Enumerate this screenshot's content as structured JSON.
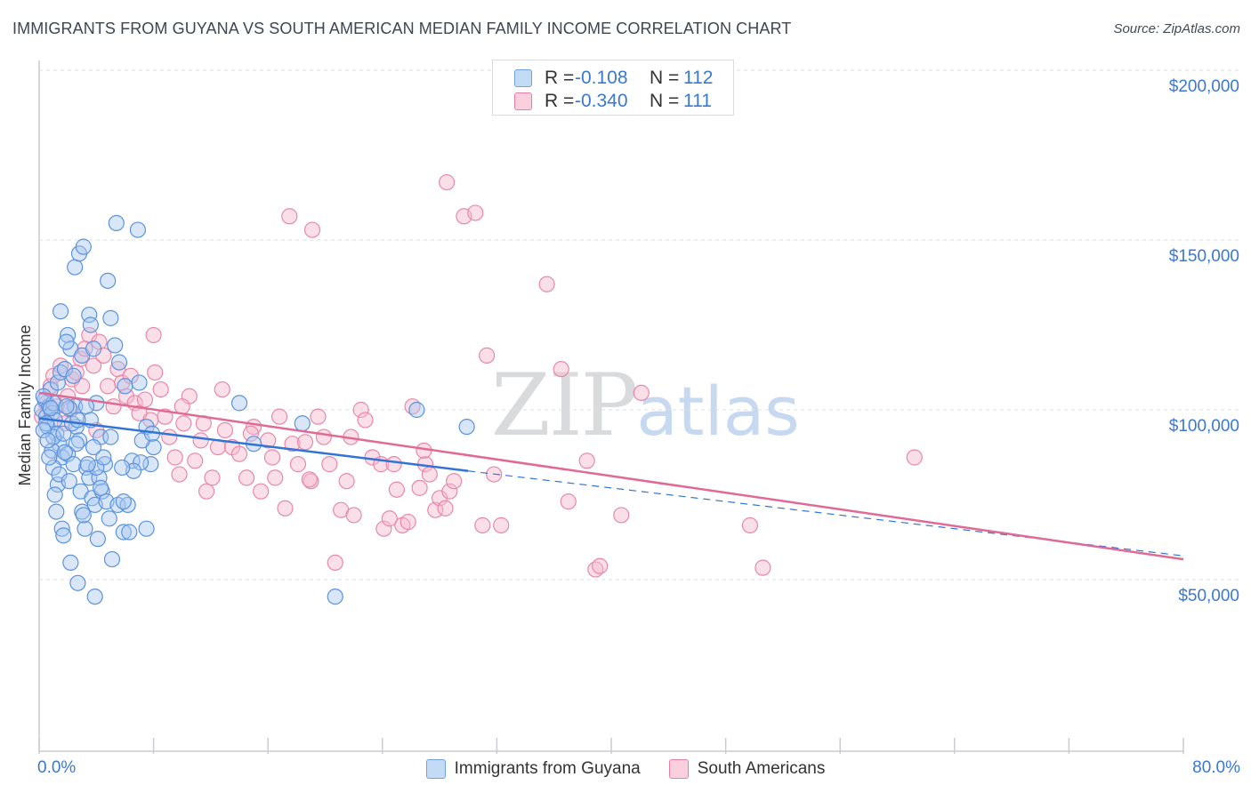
{
  "header": {
    "title": "IMMIGRANTS FROM GUYANA VS SOUTH AMERICAN MEDIAN FAMILY INCOME CORRELATION CHART",
    "source": "Source: ZipAtlas.com"
  },
  "watermark": {
    "zip": "ZIP",
    "atlas": "atlas"
  },
  "legend": {
    "rows": [
      {
        "r_label": "R =",
        "r_value": "-0.108",
        "n_label": "N =",
        "n_value": "112",
        "color": "#a9c8f0",
        "border": "#6fa0e0"
      },
      {
        "r_label": "R =",
        "r_value": "-0.340",
        "n_label": "N =",
        "n_value": "111",
        "color": "#f7b8cd",
        "border": "#e87fa3"
      }
    ]
  },
  "bottom_legend": {
    "series_a": "Immigrants from Guyana",
    "series_b": "South Americans"
  },
  "colors": {
    "blue_fill": "#a9c8f0",
    "blue_stroke": "#5b93dc",
    "blue_line": "#3273d6",
    "pink_fill": "#f7b8cd",
    "pink_stroke": "#e888a8",
    "pink_line": "#e06a95",
    "grid": "#dcdfe3",
    "axis_text": "#3b78d0"
  },
  "chart_data": {
    "type": "scatter",
    "title": "IMMIGRANTS FROM GUYANA VS SOUTH AMERICAN MEDIAN FAMILY INCOME CORRELATION CHART",
    "xlabel": "",
    "ylabel": "Median Family Income",
    "xlim": [
      0,
      80
    ],
    "ylim": [
      0,
      210000
    ],
    "x_tick_labels": [
      "0.0%",
      "80.0%"
    ],
    "y_ticks": [
      {
        "value": 50000,
        "label": "$50,000"
      },
      {
        "value": 100000,
        "label": "$100,000"
      },
      {
        "value": 150000,
        "label": "$150,000"
      },
      {
        "value": 200000,
        "label": "$200,000"
      }
    ],
    "series": [
      {
        "name": "Immigrants from Guyana",
        "R": -0.108,
        "N": 112,
        "trend": {
          "x0": 0,
          "y0": 97500,
          "x1": 30,
          "y1": 82000,
          "x_dash_end": 80,
          "y_dash_end": 57000
        },
        "points": [
          [
            0.2,
            100000
          ],
          [
            0.4,
            103000
          ],
          [
            0.5,
            98000
          ],
          [
            0.6,
            95000
          ],
          [
            0.7,
            101000
          ],
          [
            0.8,
            106000
          ],
          [
            0.9,
            99000
          ],
          [
            1.0,
            102000
          ],
          [
            1.1,
            97000
          ],
          [
            1.2,
            93000
          ],
          [
            0.3,
            104000
          ],
          [
            0.5,
            96000
          ],
          [
            0.8,
            100500
          ],
          [
            1.3,
            108000
          ],
          [
            1.5,
            111000
          ],
          [
            1.4,
            90000
          ],
          [
            1.6,
            86000
          ],
          [
            1.8,
            112000
          ],
          [
            2.0,
            122000
          ],
          [
            2.2,
            118000
          ],
          [
            1.5,
            129000
          ],
          [
            1.9,
            120000
          ],
          [
            2.4,
            110000
          ],
          [
            2.5,
            101000
          ],
          [
            2.6,
            95000
          ],
          [
            2.8,
            91000
          ],
          [
            3.0,
            116000
          ],
          [
            2.5,
            142000
          ],
          [
            2.8,
            146000
          ],
          [
            3.1,
            148000
          ],
          [
            3.5,
            128000
          ],
          [
            3.6,
            125000
          ],
          [
            3.8,
            118000
          ],
          [
            4.0,
            102000
          ],
          [
            4.3,
            92000
          ],
          [
            4.6,
            84000
          ],
          [
            4.8,
            138000
          ],
          [
            5.0,
            127000
          ],
          [
            5.3,
            119000
          ],
          [
            5.6,
            114000
          ],
          [
            5.4,
            155000
          ],
          [
            6.9,
            153000
          ],
          [
            6.0,
            107000
          ],
          [
            7.0,
            108000
          ],
          [
            7.5,
            95000
          ],
          [
            8.0,
            89000
          ],
          [
            7.8,
            84000
          ],
          [
            1.0,
            83000
          ],
          [
            1.3,
            78000
          ],
          [
            1.1,
            75000
          ],
          [
            1.2,
            70000
          ],
          [
            1.6,
            65000
          ],
          [
            1.7,
            63000
          ],
          [
            2.2,
            55000
          ],
          [
            2.7,
            49000
          ],
          [
            3.2,
            65000
          ],
          [
            2.9,
            76000
          ],
          [
            3.3,
            83000
          ],
          [
            3.5,
            80000
          ],
          [
            3.7,
            74000
          ],
          [
            3.9,
            72000
          ],
          [
            4.1,
            62000
          ],
          [
            4.2,
            80000
          ],
          [
            4.4,
            76000
          ],
          [
            4.7,
            73000
          ],
          [
            4.9,
            68000
          ],
          [
            5.1,
            56000
          ],
          [
            3.9,
            45000
          ],
          [
            5.5,
            72000
          ],
          [
            5.9,
            64000
          ],
          [
            6.2,
            72000
          ],
          [
            6.5,
            85000
          ],
          [
            7.1,
            84500
          ],
          [
            7.5,
            65000
          ],
          [
            5.9,
            73000
          ],
          [
            6.3,
            64000
          ],
          [
            6.6,
            82000
          ],
          [
            2.0,
            87000
          ],
          [
            2.4,
            84000
          ],
          [
            2.6,
            90000
          ],
          [
            0.9,
            88000
          ],
          [
            1.0,
            92000
          ],
          [
            1.7,
            93000
          ],
          [
            2.1,
            100500
          ],
          [
            2.3,
            96000
          ],
          [
            3.0,
            70000
          ],
          [
            3.3,
            101000
          ],
          [
            3.6,
            97000
          ],
          [
            4.0,
            83000
          ],
          [
            4.5,
            86000
          ],
          [
            5.0,
            92000
          ],
          [
            5.8,
            83000
          ],
          [
            7.2,
            91000
          ],
          [
            7.9,
            93000
          ],
          [
            14.0,
            102000
          ],
          [
            15.0,
            90000
          ],
          [
            18.4,
            96000
          ],
          [
            26.4,
            100000
          ],
          [
            29.9,
            95000
          ],
          [
            20.7,
            45000
          ],
          [
            0.3,
            94000
          ],
          [
            0.6,
            91000
          ],
          [
            1.9,
            101000
          ],
          [
            2.7,
            97000
          ],
          [
            3.8,
            89000
          ],
          [
            4.3,
            77000
          ],
          [
            0.7,
            86000
          ],
          [
            1.4,
            81000
          ],
          [
            1.8,
            87500
          ],
          [
            3.4,
            84000
          ],
          [
            2.1,
            79000
          ],
          [
            3.1,
            69000
          ]
        ]
      },
      {
        "name": "South Americans",
        "R": -0.34,
        "N": 111,
        "trend": {
          "x0": 0,
          "y0": 105000,
          "x1": 80,
          "y1": 56000
        },
        "points": [
          [
            0.2,
            98000
          ],
          [
            0.5,
            102000
          ],
          [
            0.8,
            107000
          ],
          [
            1.0,
            110000
          ],
          [
            1.2,
            101000
          ],
          [
            1.5,
            113000
          ],
          [
            1.8,
            96000
          ],
          [
            2.0,
            104000
          ],
          [
            2.3,
            109000
          ],
          [
            2.6,
            111000
          ],
          [
            2.9,
            115000
          ],
          [
            3.2,
            118000
          ],
          [
            3.5,
            122000
          ],
          [
            3.8,
            113000
          ],
          [
            4.2,
            120000
          ],
          [
            4.5,
            116000
          ],
          [
            4.8,
            107000
          ],
          [
            5.2,
            101000
          ],
          [
            5.5,
            112000
          ],
          [
            5.8,
            108000
          ],
          [
            6.1,
            104000
          ],
          [
            6.4,
            110000
          ],
          [
            6.7,
            102000
          ],
          [
            7.0,
            99000
          ],
          [
            7.4,
            103000
          ],
          [
            7.8,
            97000
          ],
          [
            8.1,
            111000
          ],
          [
            8.5,
            106000
          ],
          [
            8.8,
            98000
          ],
          [
            9.1,
            92000
          ],
          [
            9.5,
            86000
          ],
          [
            9.8,
            81000
          ],
          [
            10.1,
            96000
          ],
          [
            10.5,
            104000
          ],
          [
            10.9,
            85000
          ],
          [
            11.3,
            91000
          ],
          [
            11.7,
            76000
          ],
          [
            12.1,
            80000
          ],
          [
            12.5,
            89000
          ],
          [
            13.0,
            94000
          ],
          [
            13.5,
            89000
          ],
          [
            14.0,
            87000
          ],
          [
            14.5,
            80000
          ],
          [
            15.0,
            95000
          ],
          [
            15.5,
            76000
          ],
          [
            16.0,
            91000
          ],
          [
            16.3,
            86000
          ],
          [
            16.8,
            98000
          ],
          [
            17.2,
            71000
          ],
          [
            17.7,
            90000
          ],
          [
            18.1,
            84000
          ],
          [
            18.6,
            90500
          ],
          [
            19.0,
            79000
          ],
          [
            19.5,
            98000
          ],
          [
            19.9,
            92000
          ],
          [
            20.3,
            84000
          ],
          [
            20.7,
            55000
          ],
          [
            21.1,
            70500
          ],
          [
            21.5,
            79000
          ],
          [
            22.0,
            69000
          ],
          [
            22.5,
            100000
          ],
          [
            22.8,
            97000
          ],
          [
            23.3,
            86000
          ],
          [
            23.9,
            84000
          ],
          [
            24.1,
            65000
          ],
          [
            24.5,
            68000
          ],
          [
            25.0,
            76500
          ],
          [
            25.4,
            66000
          ],
          [
            25.8,
            67000
          ],
          [
            26.1,
            101000
          ],
          [
            26.6,
            77000
          ],
          [
            27.0,
            84000
          ],
          [
            27.3,
            81000
          ],
          [
            27.7,
            70500
          ],
          [
            28.0,
            74000
          ],
          [
            28.4,
            71000
          ],
          [
            28.7,
            76000
          ],
          [
            29.0,
            79000
          ],
          [
            28.5,
            167000
          ],
          [
            29.7,
            157000
          ],
          [
            30.5,
            158000
          ],
          [
            31.0,
            66000
          ],
          [
            31.8,
            81000
          ],
          [
            32.3,
            66000
          ],
          [
            31.3,
            116000
          ],
          [
            35.5,
            137000
          ],
          [
            36.5,
            112000
          ],
          [
            37.0,
            73000
          ],
          [
            38.3,
            85000
          ],
          [
            38.9,
            53000
          ],
          [
            39.2,
            54000
          ],
          [
            40.7,
            69000
          ],
          [
            42.1,
            105000
          ],
          [
            49.7,
            66000
          ],
          [
            50.6,
            53500
          ],
          [
            61.2,
            86000
          ],
          [
            17.5,
            157000
          ],
          [
            19.1,
            153000
          ],
          [
            3.0,
            107000
          ],
          [
            8.0,
            122000
          ],
          [
            10.0,
            101000
          ],
          [
            11.5,
            96000
          ],
          [
            12.8,
            106000
          ],
          [
            14.8,
            93000
          ],
          [
            16.5,
            80000
          ],
          [
            18.9,
            79500
          ],
          [
            21.8,
            92000
          ],
          [
            24.8,
            84000
          ],
          [
            26.9,
            88000
          ],
          [
            2.2,
            100000
          ],
          [
            4.0,
            94000
          ]
        ]
      }
    ]
  }
}
